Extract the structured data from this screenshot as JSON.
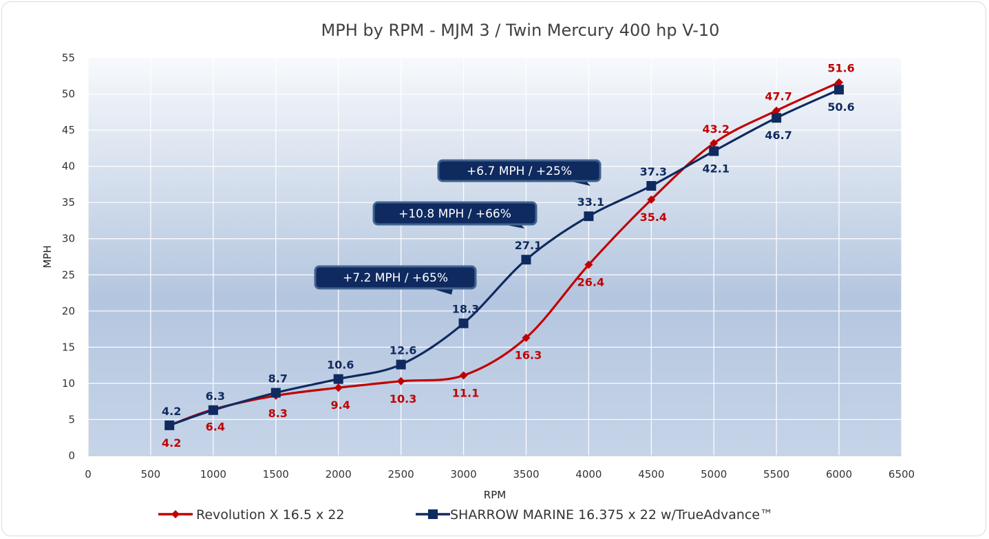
{
  "chart_data": {
    "type": "line",
    "title": "MPH by RPM - MJM 3 / Twin Mercury 400 hp V-10",
    "xlabel": "RPM",
    "ylabel": "MPH",
    "xlim": [
      0,
      6500
    ],
    "ylim": [
      0,
      55
    ],
    "xticks": [
      0,
      500,
      1000,
      1500,
      2000,
      2500,
      3000,
      3500,
      4000,
      4500,
      5000,
      5500,
      6000,
      6500
    ],
    "yticks": [
      0,
      5,
      10,
      15,
      20,
      25,
      30,
      35,
      40,
      45,
      50,
      55
    ],
    "grid": true,
    "legend_position": "bottom",
    "series": [
      {
        "name": "Revolution X 16.5 x 22",
        "color": "#c00000",
        "marker": "diamond",
        "x": [
          650,
          1000,
          1500,
          2000,
          2500,
          3000,
          3500,
          4000,
          4500,
          5000,
          5500,
          6000
        ],
        "y": [
          4.2,
          6.4,
          8.3,
          9.4,
          10.3,
          11.1,
          16.3,
          26.4,
          35.4,
          43.2,
          47.7,
          51.6
        ],
        "labels": [
          "4.2",
          "6.4",
          "8.3",
          "9.4",
          "10.3",
          "11.1",
          "16.3",
          "26.4",
          "35.4",
          "43.2",
          "47.7",
          "51.6"
        ]
      },
      {
        "name": "SHARROW MARINE 16.375 x 22 w/TrueAdvance™",
        "color": "#0f2a5f",
        "marker": "square",
        "x": [
          650,
          1000,
          1500,
          2000,
          2500,
          3000,
          3500,
          4000,
          4500,
          5000,
          5500,
          6000
        ],
        "y": [
          4.2,
          6.3,
          8.7,
          10.6,
          12.6,
          18.3,
          27.1,
          33.1,
          37.3,
          42.1,
          46.7,
          50.6
        ],
        "labels": [
          "4.2",
          "6.3",
          "8.7",
          "10.6",
          "12.6",
          "18.3",
          "27.1",
          "33.1",
          "37.3",
          "42.1",
          "46.7",
          "50.6"
        ]
      }
    ],
    "annotations": [
      {
        "text": "+7.2 MPH / +65%",
        "target": [
          3000,
          18.3
        ]
      },
      {
        "text": "+10.8 MPH / +66%",
        "target": [
          3500,
          27.1
        ]
      },
      {
        "text": "+6.7 MPH / +25%",
        "target": [
          4000,
          33.1
        ]
      }
    ]
  }
}
